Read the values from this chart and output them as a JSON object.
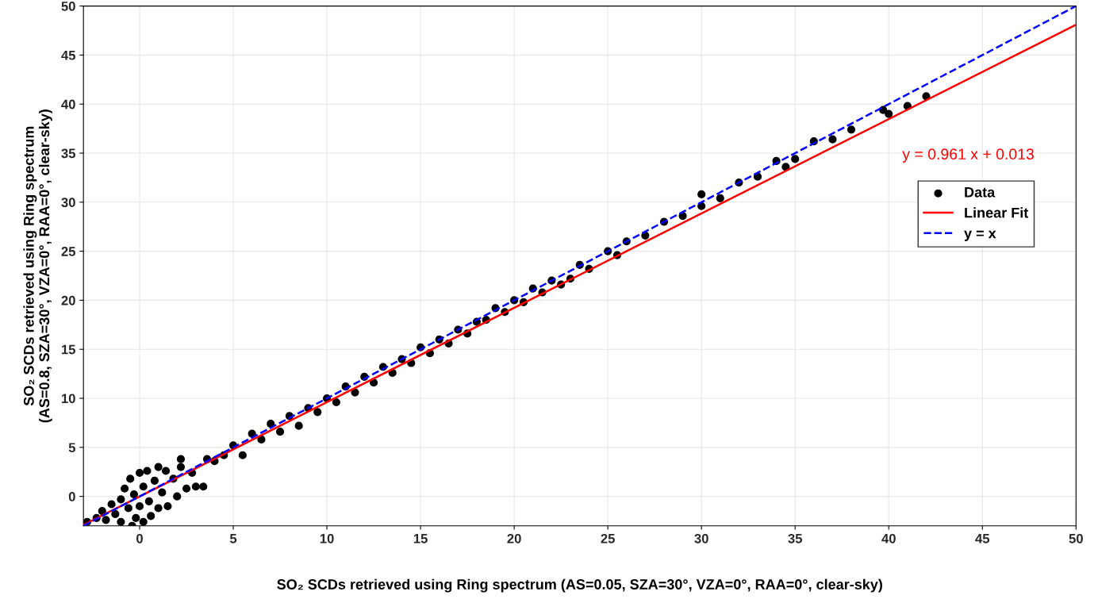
{
  "chart_data": {
    "type": "scatter",
    "xlabel": "SO₂ SCDs retrieved using Ring spectrum (AS=0.05, SZA=30°, VZA=0°, RAA=0°, clear-sky)",
    "ylabel": "SO₂ SCDs retrieved using Ring spectrum\n(AS=0.8, SZA=30°, VZA=0°, RAA=0°, clear-sky)",
    "annotations": [
      "y = 0.961 x + 0.013"
    ],
    "xlim": [
      -3,
      50
    ],
    "ylim": [
      -3,
      50
    ],
    "xticks": [
      0,
      5,
      10,
      15,
      20,
      25,
      30,
      35,
      40,
      45,
      50
    ],
    "yticks": [
      0,
      5,
      10,
      15,
      20,
      25,
      30,
      35,
      40,
      45,
      50
    ],
    "grid": true,
    "legend": "right",
    "series": [
      {
        "name": "Data",
        "marker": "circle",
        "color": "#000000",
        "x": [
          -2.8,
          -2.3,
          -2,
          -1.8,
          -1.5,
          -1.3,
          -1,
          -1,
          -0.8,
          -0.6,
          -0.5,
          -0.4,
          -0.3,
          -0.2,
          0,
          0,
          0.2,
          0.2,
          0.4,
          0.5,
          0.6,
          0.8,
          1,
          1,
          1.2,
          1.4,
          1.5,
          1.8,
          2,
          2.2,
          2.5,
          2.8,
          3,
          3.4,
          2.2,
          3.6,
          4,
          4.5,
          5,
          5.5,
          6,
          6.5,
          7,
          7.5,
          8,
          8.5,
          9,
          9.5,
          10,
          10.5,
          11,
          11.5,
          12,
          12.5,
          13,
          13.5,
          14,
          14.5,
          15,
          15.5,
          16,
          16.5,
          17,
          17.5,
          18,
          18.5,
          19,
          19.5,
          20,
          20.5,
          21,
          21.5,
          22,
          22.5,
          23,
          23.5,
          24,
          25,
          25.5,
          26,
          27,
          28,
          29,
          30,
          30,
          31,
          32,
          33,
          34,
          34.5,
          35,
          36,
          37,
          38,
          39.7,
          40,
          41,
          42
        ],
        "values": [
          -2.6,
          -2.2,
          -1.5,
          -2.4,
          -0.8,
          -1.8,
          -0.3,
          -2.6,
          0.8,
          -1.2,
          1.8,
          -3,
          0.2,
          -2.2,
          2.4,
          -1,
          1,
          -2.6,
          2.6,
          -0.5,
          -2,
          1.6,
          3,
          -1.2,
          0.4,
          2.6,
          -1,
          1.8,
          0,
          3,
          0.8,
          2.4,
          1,
          1,
          3.8,
          3.8,
          3.6,
          4.2,
          5.2,
          4.2,
          6.4,
          5.8,
          7.4,
          6.6,
          8.2,
          7.2,
          9,
          8.6,
          10,
          9.6,
          11.2,
          10.6,
          12.2,
          11.6,
          13.2,
          12.6,
          14,
          13.6,
          15.2,
          14.6,
          16,
          15.6,
          17,
          16.6,
          17.8,
          18,
          19.2,
          18.8,
          20,
          19.8,
          21.2,
          20.8,
          22,
          21.6,
          22.2,
          23.6,
          23.2,
          25,
          24.6,
          26,
          26.6,
          28,
          28.6,
          30.8,
          29.6,
          30.4,
          32,
          32.6,
          34.2,
          33.6,
          34.4,
          36.2,
          36.4,
          37.4,
          39.4,
          39,
          39.8,
          40.8
        ]
      },
      {
        "name": "Linear Fit",
        "type": "line",
        "line_style": "solid",
        "color": "#ff0000",
        "x": [
          -3,
          50
        ],
        "values": [
          -2.9,
          48.1
        ]
      },
      {
        "name": "y = x",
        "type": "line",
        "line_style": "dashed",
        "color": "#0000ff",
        "x": [
          -3,
          50
        ],
        "values": [
          -3,
          50
        ]
      }
    ]
  }
}
